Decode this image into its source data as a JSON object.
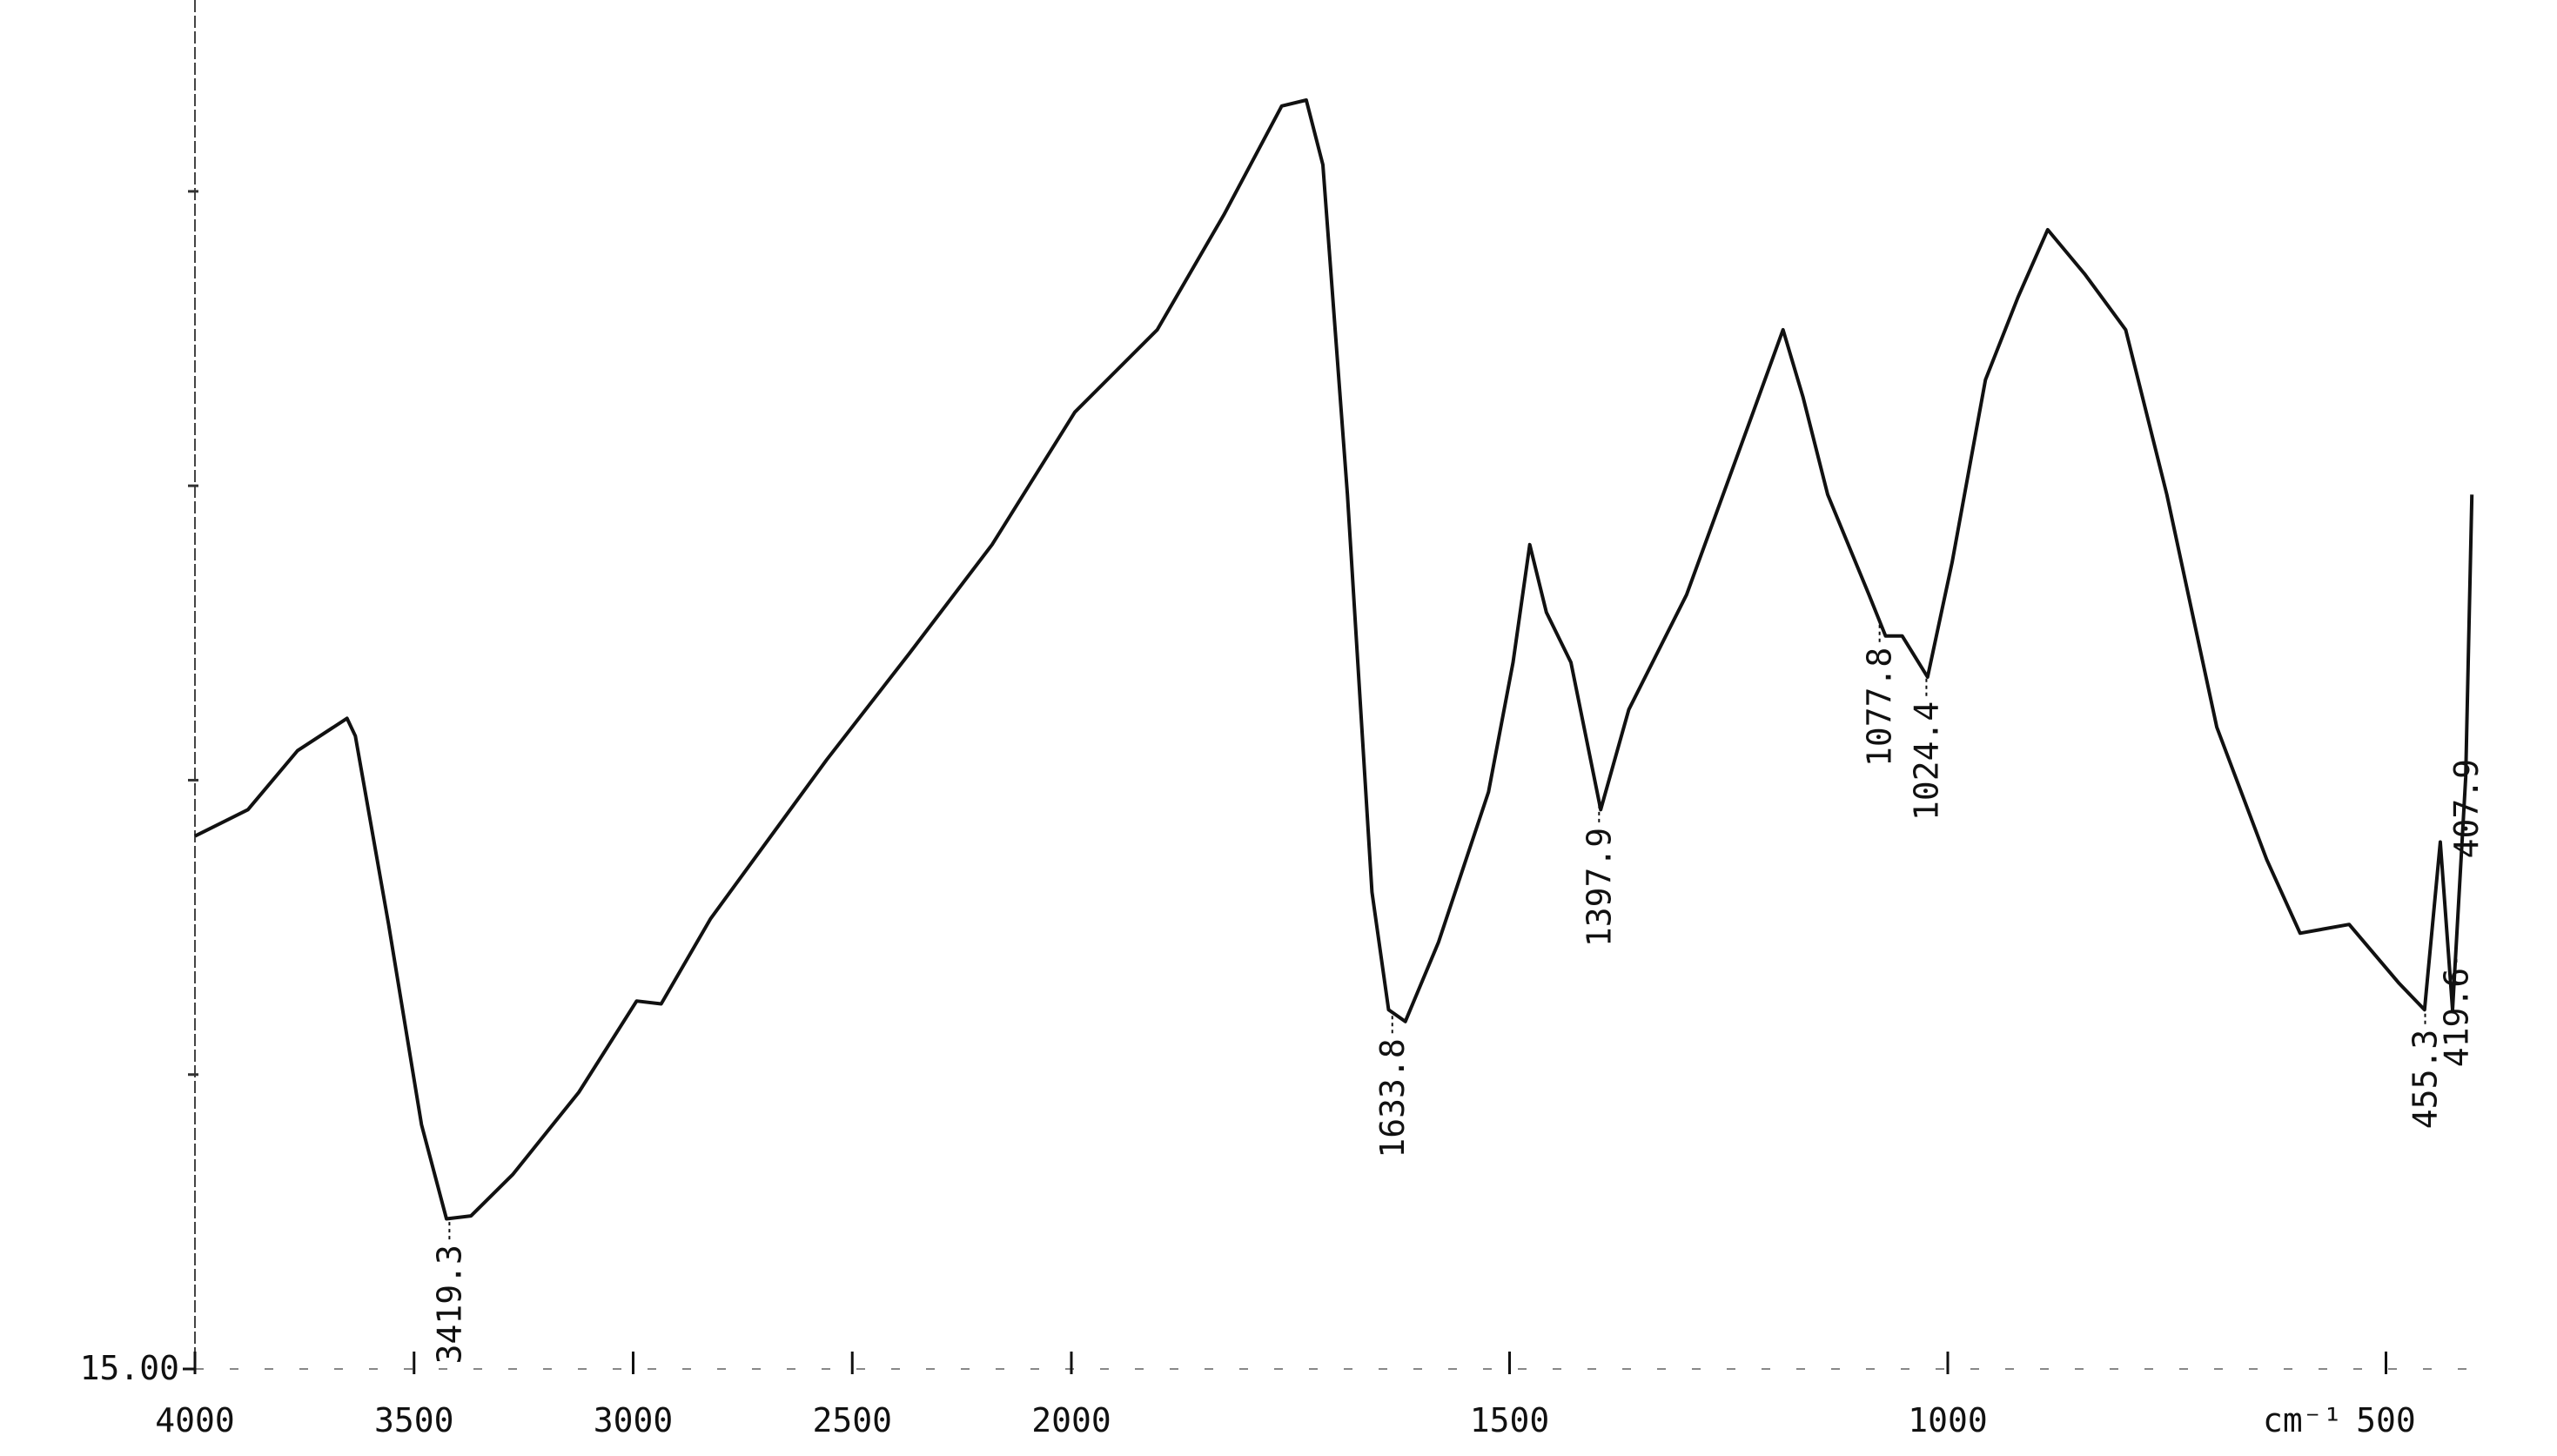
{
  "chart_data": {
    "type": "line",
    "color": "#111111",
    "x_unit": "cm⁻¹",
    "xlim": [
      4000,
      400
    ],
    "x_expansion": {
      "below": 2000,
      "factor": 2
    },
    "xticks": [
      4000,
      3500,
      3000,
      2500,
      2000,
      1500,
      1000,
      500
    ],
    "ylim": [
      15,
      61.5
    ],
    "yticks": [
      {
        "value": 15,
        "label": "15.00"
      }
    ],
    "yminor": [
      25,
      35,
      45,
      55
    ],
    "x": [
      4000,
      3879,
      3766,
      3653,
      3634,
      3558,
      3483,
      3426,
      3370,
      3275,
      3124,
      2992,
      2936,
      2823,
      2558,
      2370,
      2181,
      1996,
      1902,
      1826,
      1760,
      1732,
      1713,
      1685,
      1657,
      1638,
      1619,
      1581,
      1524,
      1496,
      1477,
      1458,
      1430,
      1396,
      1364,
      1298,
      1222,
      1188,
      1165,
      1137,
      1090,
      1071,
      1052,
      1023,
      995,
      957,
      920,
      886,
      844,
      797,
      750,
      693,
      636,
      598,
      542,
      485,
      456,
      438,
      424,
      409,
      402
    ],
    "values": [
      33.1,
      34.0,
      36.0,
      37.1,
      36.5,
      30.1,
      23.3,
      20.1,
      20.2,
      21.6,
      24.4,
      27.5,
      27.4,
      30.3,
      35.7,
      39.3,
      43.0,
      47.5,
      50.3,
      54.2,
      57.9,
      58.1,
      55.9,
      44.7,
      31.2,
      27.2,
      26.8,
      29.5,
      34.6,
      39.0,
      43.0,
      40.7,
      39.0,
      34.0,
      37.4,
      41.3,
      47.5,
      50.3,
      48.0,
      44.7,
      41.3,
      39.9,
      39.9,
      38.5,
      42.4,
      48.6,
      51.4,
      53.7,
      52.2,
      50.3,
      44.7,
      36.8,
      32.3,
      29.8,
      30.1,
      28.1,
      27.2,
      32.9,
      27.2,
      35.1,
      44.7
    ],
    "peaks": [
      {
        "x": 3419.3,
        "label": "3419.3"
      },
      {
        "x": 1633.8,
        "label": "1633.8"
      },
      {
        "x": 1397.9,
        "label": "1397.9"
      },
      {
        "x": 1077.8,
        "label": "1077.8"
      },
      {
        "x": 1024.4,
        "label": "1024.4"
      },
      {
        "x": 455.3,
        "label": "455.3"
      },
      {
        "x": 419.6,
        "label": "419.6"
      },
      {
        "x": 407.9,
        "label": "407.9"
      }
    ]
  }
}
